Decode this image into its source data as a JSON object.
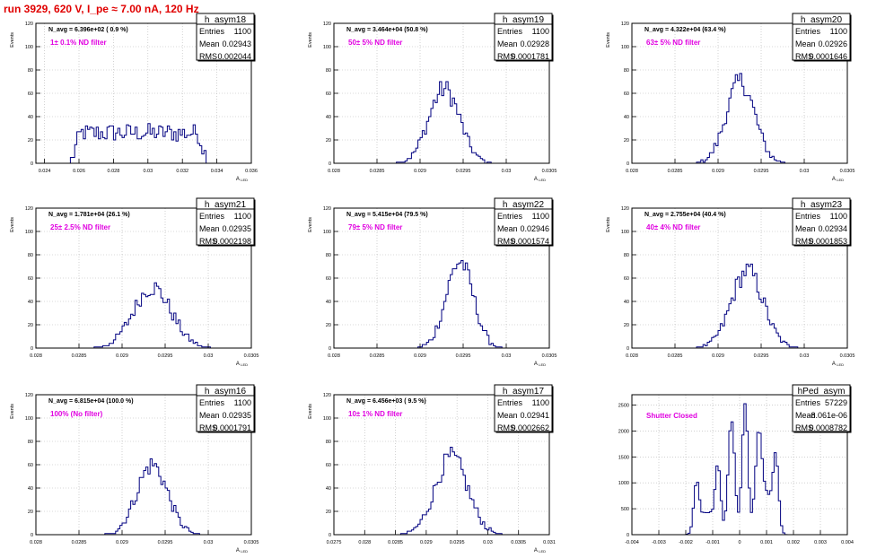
{
  "run_title": "run 3929,   620 V, I_pe ≈ 7.00 nA, 120 Hz",
  "colors": {
    "histogram": "#000080",
    "filter_text": "#e000e0",
    "title": "#e00000",
    "grid": "#b4b4b4"
  },
  "chart_data": [
    {
      "type": "histogram",
      "title": "h_asym18",
      "stats": [
        [
          "Entries",
          "1100"
        ],
        [
          "Mean",
          "0.02943"
        ],
        [
          "RMS",
          "0.002044"
        ]
      ],
      "nav_label": "N_avg = 6.396e+02 ( 0.9 %)",
      "filter_label": "1± 0.1% ND filter",
      "xlabel": "A_LED",
      "ylabel": "Events",
      "xlim": [
        0.0235,
        0.036
      ],
      "ylim": [
        0,
        120
      ],
      "xticks": [
        "0.024",
        "0.026",
        "0.028",
        "0.03",
        "0.032",
        "0.034",
        "0.036"
      ],
      "yticks": [
        "0",
        "20",
        "40",
        "60",
        "80",
        "100",
        "120"
      ],
      "grid": true,
      "shape": {
        "kind": "flat",
        "low": 0.0255,
        "high": 0.0335,
        "level": 26
      }
    },
    {
      "type": "histogram",
      "title": "h_asym19",
      "stats": [
        [
          "Entries",
          "1100"
        ],
        [
          "Mean",
          "0.02928"
        ],
        [
          "RMS",
          "0.0001781"
        ]
      ],
      "nav_label": "N_avg = 3.464e+04 (50.8 %)",
      "filter_label": "50± 5% ND filter",
      "xlabel": "A_LED",
      "ylabel": "Events",
      "xlim": [
        0.028,
        0.0305
      ],
      "ylim": [
        0,
        120
      ],
      "xticks": [
        "0.028",
        "0.0285",
        "0.029",
        "0.0295",
        "0.03",
        "0.0305"
      ],
      "yticks": [
        "0",
        "20",
        "40",
        "60",
        "80",
        "100",
        "120"
      ],
      "grid": true,
      "shape": {
        "kind": "gauss",
        "peaks": [
          [
            0.02928,
            0.000178,
            64
          ]
        ]
      }
    },
    {
      "type": "histogram",
      "title": "h_asym20",
      "stats": [
        [
          "Entries",
          "1100"
        ],
        [
          "Mean",
          "0.02926"
        ],
        [
          "RMS",
          "0.0001646"
        ]
      ],
      "nav_label": "N_avg = 4.322e+04 (63.4 %)",
      "filter_label": "63± 5% ND filter",
      "xlabel": "A_LED",
      "ylabel": "Events",
      "xlim": [
        0.028,
        0.0305
      ],
      "ylim": [
        0,
        120
      ],
      "xticks": [
        "0.028",
        "0.0285",
        "0.029",
        "0.0295",
        "0.03",
        "0.0305"
      ],
      "yticks": [
        "0",
        "20",
        "40",
        "60",
        "80",
        "100",
        "120"
      ],
      "grid": true,
      "shape": {
        "kind": "gauss",
        "peaks": [
          [
            0.02926,
            0.000165,
            70
          ]
        ]
      }
    },
    {
      "type": "histogram",
      "title": "h_asym21",
      "stats": [
        [
          "Entries",
          "1100"
        ],
        [
          "Mean",
          "0.02935"
        ],
        [
          "RMS",
          "0.0002198"
        ]
      ],
      "nav_label": "N_avg = 1.781e+04 (26.1 %)",
      "filter_label": "25± 2.5% ND filter",
      "xlabel": "A_LED",
      "ylabel": "Events",
      "xlim": [
        0.028,
        0.0305
      ],
      "ylim": [
        0,
        120
      ],
      "xticks": [
        "0.028",
        "0.0285",
        "0.029",
        "0.0295",
        "0.03",
        "0.0305"
      ],
      "yticks": [
        "0",
        "20",
        "40",
        "60",
        "80",
        "100",
        "120"
      ],
      "grid": true,
      "shape": {
        "kind": "gauss",
        "peaks": [
          [
            0.02935,
            0.00022,
            52
          ]
        ]
      }
    },
    {
      "type": "histogram",
      "title": "h_asym22",
      "stats": [
        [
          "Entries",
          "1100"
        ],
        [
          "Mean",
          "0.02946"
        ],
        [
          "RMS",
          "0.0001574"
        ]
      ],
      "nav_label": "N_avg = 5.415e+04 (79.5 %)",
      "filter_label": "79± 5% ND filter",
      "xlabel": "A_LED",
      "ylabel": "Events",
      "xlim": [
        0.028,
        0.0305
      ],
      "ylim": [
        0,
        120
      ],
      "xticks": [
        "0.028",
        "0.0285",
        "0.029",
        "0.0295",
        "0.03",
        "0.0305"
      ],
      "yticks": [
        "0",
        "20",
        "40",
        "60",
        "80",
        "100",
        "120"
      ],
      "grid": true,
      "shape": {
        "kind": "gauss",
        "peaks": [
          [
            0.02946,
            0.000157,
            74
          ]
        ]
      }
    },
    {
      "type": "histogram",
      "title": "h_asym23",
      "stats": [
        [
          "Entries",
          "1100"
        ],
        [
          "Mean",
          "0.02934"
        ],
        [
          "RMS",
          "0.0001853"
        ]
      ],
      "nav_label": "N_avg = 2.755e+04 (40.4 %)",
      "filter_label": "40± 4% ND filter",
      "xlabel": "A_LED",
      "ylabel": "Events",
      "xlim": [
        0.028,
        0.0305
      ],
      "ylim": [
        0,
        120
      ],
      "xticks": [
        "0.028",
        "0.0285",
        "0.029",
        "0.0295",
        "0.03",
        "0.0305"
      ],
      "yticks": [
        "0",
        "20",
        "40",
        "60",
        "80",
        "100",
        "120"
      ],
      "grid": true,
      "shape": {
        "kind": "gauss",
        "peaks": [
          [
            0.02934,
            0.000185,
            66
          ]
        ]
      }
    },
    {
      "type": "histogram",
      "title": "h_asym16",
      "stats": [
        [
          "Entries",
          "1100"
        ],
        [
          "Mean",
          "0.02935"
        ],
        [
          "RMS",
          "0.0001791"
        ]
      ],
      "nav_label": "N_avg = 6.815e+04 (100.0 %)",
      "filter_label": "100% (No filter)",
      "xlabel": "A_LED",
      "ylabel": "Events",
      "xlim": [
        0.028,
        0.0305
      ],
      "ylim": [
        0,
        120
      ],
      "xticks": [
        "0.028",
        "0.0285",
        "0.029",
        "0.0295",
        "0.03",
        "0.0305"
      ],
      "yticks": [
        "0",
        "20",
        "40",
        "60",
        "80",
        "100",
        "120"
      ],
      "grid": true,
      "shape": {
        "kind": "gauss",
        "peaks": [
          [
            0.02935,
            0.000179,
            60
          ]
        ]
      }
    },
    {
      "type": "histogram",
      "title": "h_asym17",
      "stats": [
        [
          "Entries",
          "1100"
        ],
        [
          "Mean",
          "0.02941"
        ],
        [
          "RMS",
          "0.0002662"
        ]
      ],
      "nav_label": "N_avg = 6.456e+03 ( 9.5 %)",
      "filter_label": "10± 1% ND filter",
      "xlabel": "A_LED",
      "ylabel": "Events",
      "xlim": [
        0.0275,
        0.031
      ],
      "ylim": [
        0,
        120
      ],
      "xticks": [
        "0.0275",
        "0.028",
        "0.0285",
        "0.029",
        "0.0295",
        "0.03",
        "0.0305",
        "0.031"
      ],
      "yticks": [
        "0",
        "20",
        "40",
        "60",
        "80",
        "100",
        "120"
      ],
      "grid": true,
      "shape": {
        "kind": "gauss",
        "peaks": [
          [
            0.02941,
            0.000266,
            66
          ]
        ]
      }
    },
    {
      "type": "histogram",
      "title": "hPed_asym",
      "stats": [
        [
          "Entries",
          "57229"
        ],
        [
          "Mean",
          "-8.061e-06"
        ],
        [
          "RMS",
          "0.0008782"
        ]
      ],
      "nav_label": "",
      "filter_label": "Shutter Closed",
      "xlabel": "",
      "ylabel": "",
      "xlim": [
        -0.004,
        0.004
      ],
      "ylim": [
        0,
        2700
      ],
      "xticks": [
        "-0.004",
        "-0.003",
        "-0.002",
        "-0.001",
        "0",
        "0.001",
        "0.002",
        "0.003",
        "0.004"
      ],
      "yticks": [
        "0",
        "500",
        "1000",
        "1500",
        "2000",
        "2500"
      ],
      "grid": true,
      "shape": {
        "kind": "gauss",
        "peaks": [
          [
            -0.0016,
            0.0001,
            900
          ],
          [
            -0.0008,
            0.0001,
            1250
          ],
          [
            -0.0003,
            0.00012,
            2250
          ],
          [
            0.0002,
            0.00011,
            2550
          ],
          [
            0.0007,
            0.00012,
            1700
          ],
          [
            0.00135,
            0.0001,
            1350
          ],
          [
            -0.0012,
            0.00025,
            450
          ],
          [
            0.001,
            0.00022,
            800
          ]
        ]
      }
    }
  ]
}
